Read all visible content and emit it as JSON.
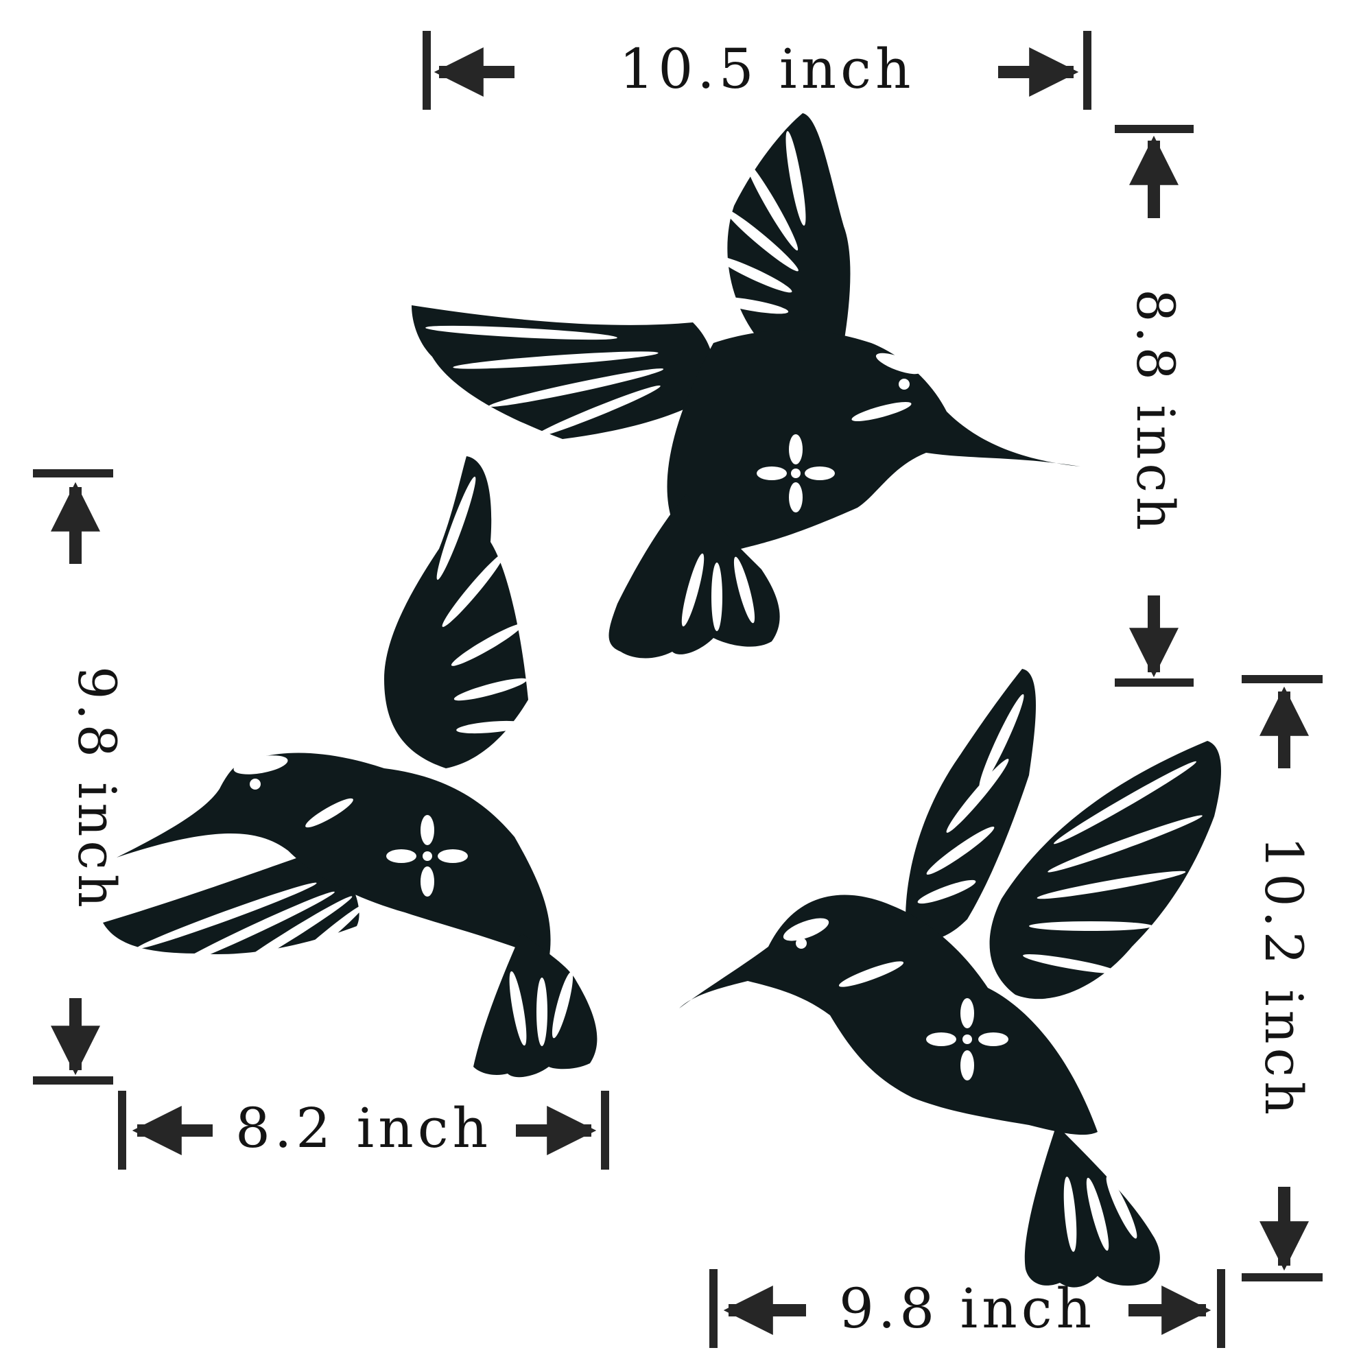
{
  "product": {
    "pieces": [
      {
        "name": "Top hummingbird",
        "width_label": "10.5 inch",
        "height_label": "8.8 inch"
      },
      {
        "name": "Left hummingbird",
        "width_label": "8.2 inch",
        "height_label": "9.8 inch"
      },
      {
        "name": "Right hummingbird",
        "width_label": "9.8 inch",
        "height_label": "10.2 inch"
      }
    ]
  },
  "colors": {
    "silhouette": "#0f1a1c",
    "dimension_marks": "#262626",
    "background": "#ffffff"
  }
}
